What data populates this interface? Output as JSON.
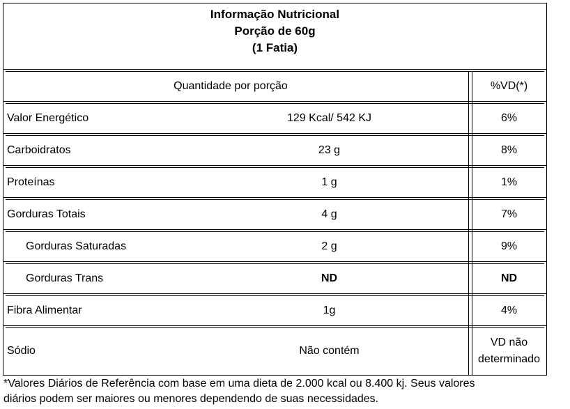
{
  "title": {
    "line1": "Informação Nutricional",
    "line2": "Porção de 60g",
    "line3": "(1 Fatia)"
  },
  "header": {
    "amount_label": "Quantidade por porção",
    "vd_label": "%VD(*)"
  },
  "rows": [
    {
      "name": "Valor Energético",
      "amount": "129 Kcal/ 542 KJ",
      "vd": "6%"
    },
    {
      "name": "Carboidratos",
      "amount": "23 g",
      "vd": "8%"
    },
    {
      "name": "Proteínas",
      "amount": "1 g",
      "vd": "1%"
    },
    {
      "name": "Gorduras Totais",
      "amount": "4 g",
      "vd": "7%"
    },
    {
      "name": "Gorduras Saturadas",
      "amount": "2 g",
      "vd": "9%"
    },
    {
      "name": "Gorduras Trans",
      "amount": "ND",
      "vd": "ND"
    },
    {
      "name": "Fibra Alimentar",
      "amount": "1g",
      "vd": "4%"
    },
    {
      "name": "Sódio",
      "amount": "Não contém",
      "vd_line1": "VD não",
      "vd_line2": "determinado"
    }
  ],
  "footnote": {
    "line1": "*Valores Diários de Referência com base em uma dieta de 2.000 kcal ou 8.400 kj. Seus valores",
    "line2": "diários podem ser maiores ou menores dependendo de suas necessidades."
  }
}
